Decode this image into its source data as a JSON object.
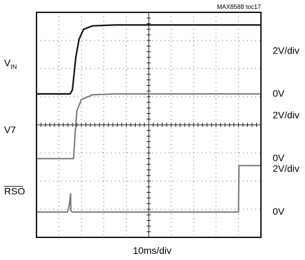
{
  "chart_data": {
    "type": "line",
    "reference": "MAX8588 toc17",
    "xlabel": "10ms/div",
    "x_divisions": 10,
    "y_divisions": 8,
    "grid": true,
    "traces": [
      {
        "name_main": "V",
        "name_sub": "IN",
        "overline": false,
        "scale": "2V/div",
        "zero_label": "0V",
        "zero_div": 5.1,
        "color": "#111111",
        "points": [
          [
            0,
            0
          ],
          [
            1.5,
            0
          ],
          [
            1.6,
            0.15
          ],
          [
            1.75,
            1.3
          ],
          [
            1.9,
            1.95
          ],
          [
            2.1,
            2.3
          ],
          [
            2.5,
            2.42
          ],
          [
            3.5,
            2.45
          ],
          [
            10,
            2.45
          ]
        ]
      },
      {
        "name_main": "V7",
        "name_sub": "",
        "overline": false,
        "scale": "2V/div",
        "zero_label": "0V",
        "zero_div": 2.8,
        "color": "#7a7a7a",
        "points": [
          [
            0,
            0
          ],
          [
            1.65,
            0
          ],
          [
            1.72,
            0.9
          ],
          [
            1.8,
            1.7
          ],
          [
            2.0,
            2.1
          ],
          [
            2.5,
            2.27
          ],
          [
            3.5,
            2.3
          ],
          [
            10,
            2.3
          ]
        ]
      },
      {
        "name_main": "RSO",
        "name_sub": "",
        "overline": true,
        "scale": "2V/div",
        "zero_label": "0V",
        "zero_div": 0.9,
        "color": "#7a7a7a",
        "points": [
          [
            0,
            0
          ],
          [
            1.38,
            0
          ],
          [
            1.46,
            0.25
          ],
          [
            1.52,
            0.65
          ],
          [
            1.53,
            0.05
          ],
          [
            1.6,
            0
          ],
          [
            9.0,
            0
          ],
          [
            9.02,
            1.65
          ],
          [
            10,
            1.65
          ]
        ]
      }
    ]
  }
}
